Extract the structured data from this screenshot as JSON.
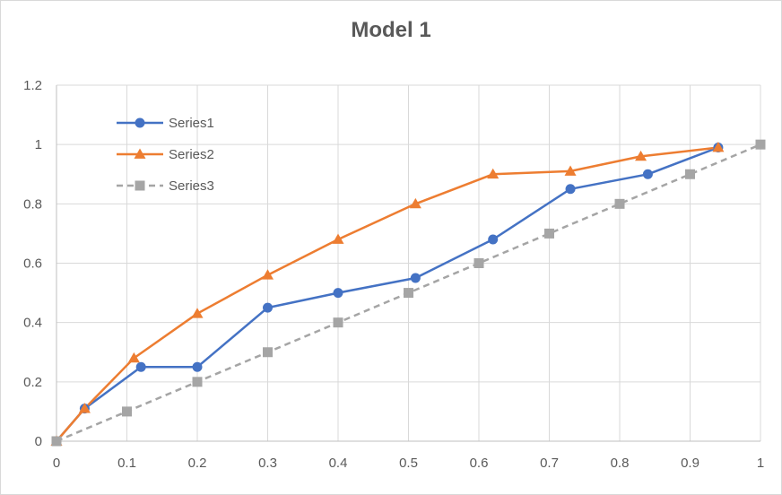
{
  "chart_data": {
    "type": "line",
    "title": "Model 1",
    "xlabel": "",
    "ylabel": "",
    "xlim": [
      0,
      1
    ],
    "ylim": [
      0,
      1.2
    ],
    "x_ticks": [
      "0",
      "0.1",
      "0.2",
      "0.3",
      "0.4",
      "0.5",
      "0.6",
      "0.7",
      "0.8",
      "0.9",
      "1"
    ],
    "y_ticks": [
      "0",
      "0.2",
      "0.4",
      "0.6",
      "0.8",
      "1",
      "1.2"
    ],
    "grid": true,
    "legend_position": "top-left",
    "series": [
      {
        "name": "Series1",
        "color": "#4472c4",
        "marker": "circle",
        "dash": "solid",
        "points": [
          [
            0,
            0
          ],
          [
            0.04,
            0.11
          ],
          [
            0.12,
            0.25
          ],
          [
            0.2,
            0.25
          ],
          [
            0.3,
            0.45
          ],
          [
            0.4,
            0.5
          ],
          [
            0.51,
            0.55
          ],
          [
            0.62,
            0.68
          ],
          [
            0.73,
            0.85
          ],
          [
            0.84,
            0.9
          ],
          [
            0.94,
            0.99
          ]
        ]
      },
      {
        "name": "Series2",
        "color": "#ed7d31",
        "marker": "triangle",
        "dash": "solid",
        "points": [
          [
            0,
            0
          ],
          [
            0.04,
            0.11
          ],
          [
            0.11,
            0.28
          ],
          [
            0.2,
            0.43
          ],
          [
            0.3,
            0.56
          ],
          [
            0.4,
            0.68
          ],
          [
            0.51,
            0.8
          ],
          [
            0.62,
            0.9
          ],
          [
            0.73,
            0.91
          ],
          [
            0.83,
            0.96
          ],
          [
            0.94,
            0.99
          ]
        ]
      },
      {
        "name": "Series3",
        "color": "#a5a5a5",
        "marker": "square",
        "dash": "dashed",
        "points": [
          [
            0,
            0
          ],
          [
            0.1,
            0.1
          ],
          [
            0.2,
            0.2
          ],
          [
            0.3,
            0.3
          ],
          [
            0.4,
            0.4
          ],
          [
            0.5,
            0.5
          ],
          [
            0.6,
            0.6
          ],
          [
            0.7,
            0.7
          ],
          [
            0.8,
            0.8
          ],
          [
            0.9,
            0.9
          ],
          [
            1,
            1
          ]
        ]
      }
    ]
  }
}
